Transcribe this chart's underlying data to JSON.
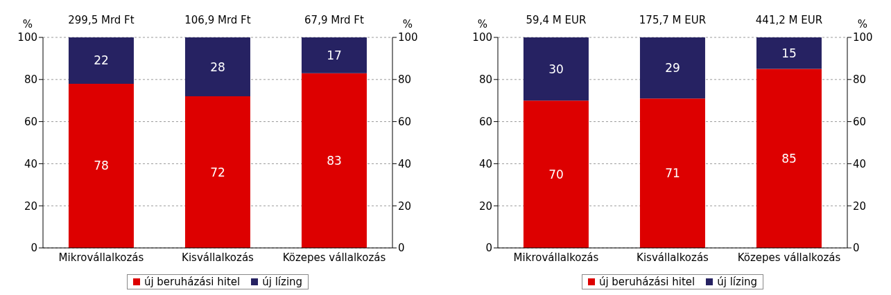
{
  "chart_data": [
    {
      "type": "bar",
      "stacked": true,
      "categories": [
        "Mikrovállalkozás",
        "Kisvállalkozás",
        "Közepes vállalkozás"
      ],
      "series": [
        {
          "name": "új beruházási hitel",
          "color": "#dd0000",
          "values": [
            78,
            72,
            83
          ]
        },
        {
          "name": "új lízing",
          "color": "#262262",
          "values": [
            22,
            28,
            17
          ]
        }
      ],
      "ylabel": "%",
      "y2label": "%",
      "ylim": [
        0,
        100
      ],
      "yticks": [
        0,
        20,
        40,
        60,
        80,
        100
      ],
      "y2lim": [
        0,
        100
      ],
      "y2ticks": [
        0,
        20,
        40,
        60,
        80,
        100
      ],
      "annotations": [
        "299,5 Mrd Ft",
        "106,9 Mrd Ft",
        "67,9 Mrd Ft"
      ],
      "data_labels": true,
      "grid": "y",
      "legend": "bottom"
    },
    {
      "type": "bar",
      "stacked": true,
      "categories": [
        "Mikrovállalkozás",
        "Kisvállalkozás",
        "Közepes vállalkozás"
      ],
      "series": [
        {
          "name": "új beruházási hitel",
          "color": "#dd0000",
          "values": [
            70,
            71,
            85
          ]
        },
        {
          "name": "új lízing",
          "color": "#262262",
          "values": [
            30,
            29,
            15
          ]
        }
      ],
      "ylabel": "%",
      "y2label": "%",
      "ylim": [
        0,
        100
      ],
      "yticks": [
        0,
        20,
        40,
        60,
        80,
        100
      ],
      "y2lim": [
        0,
        100
      ],
      "y2ticks": [
        0,
        20,
        40,
        60,
        80,
        100
      ],
      "annotations": [
        "59,4 M EUR",
        "175,7 M EUR",
        "441,2 M EUR"
      ],
      "data_labels": true,
      "grid": "y",
      "legend": "bottom"
    }
  ]
}
